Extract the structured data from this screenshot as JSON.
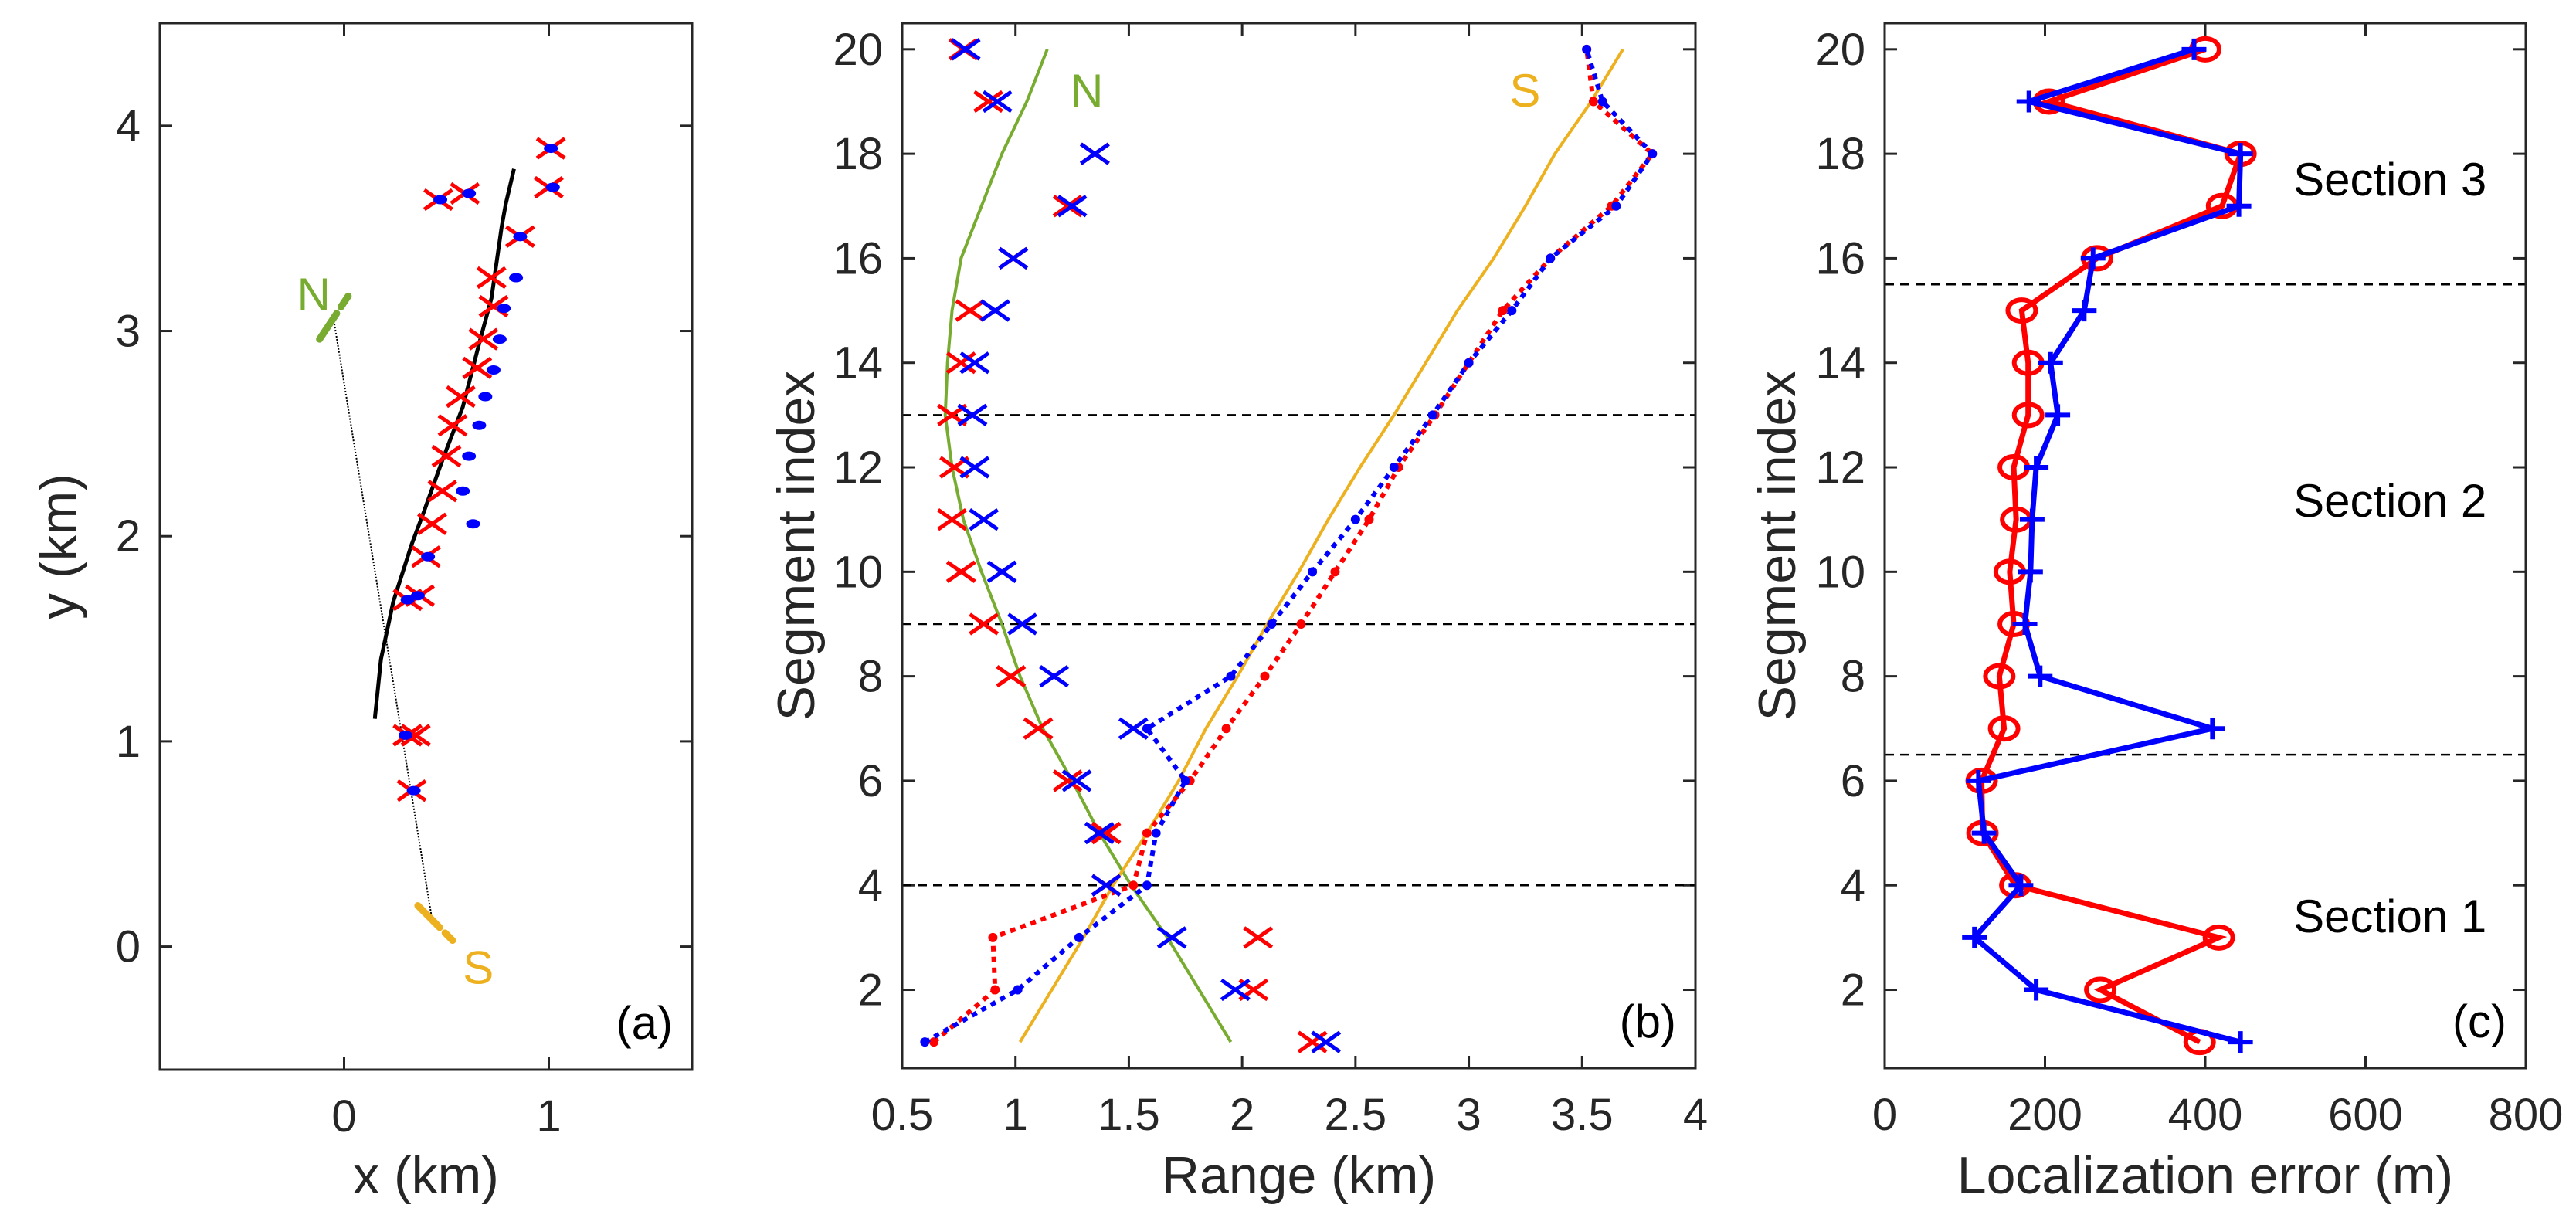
{
  "chart_data": [
    {
      "type": "scatter",
      "panel_label": "(a)",
      "xlabel": "x (km)",
      "ylabel": "y (km)",
      "xlim": [
        -0.9,
        1.7
      ],
      "ylim": [
        -0.6,
        4.5
      ],
      "xticks": [
        "0",
        "1"
      ],
      "xtick_values": [
        0,
        1
      ],
      "yticks": [
        "0",
        "1",
        "2",
        "3",
        "4"
      ],
      "ytick_values": [
        0,
        1,
        2,
        3,
        4
      ],
      "annotations": [
        {
          "text": "N",
          "x": -0.23,
          "y": 3.1,
          "color": "#77ac30"
        },
        {
          "text": "S",
          "x": 0.58,
          "y": -0.18,
          "color": "#edb120"
        }
      ],
      "track": {
        "color": "#000000",
        "x": [
          0.15,
          0.18,
          0.24,
          0.33,
          0.39,
          0.48,
          0.58,
          0.66,
          0.72,
          0.77,
          0.79,
          0.83
        ],
        "y": [
          1.11,
          1.4,
          1.68,
          1.96,
          2.12,
          2.37,
          2.63,
          2.94,
          3.16,
          3.51,
          3.62,
          3.79
        ]
      },
      "baseline": {
        "x": [
          -0.05,
          0.43
        ],
        "y": [
          3.05,
          0.13
        ]
      },
      "N_array": {
        "color": "#77ac30",
        "x": [
          -0.12,
          0.02
        ],
        "y": [
          2.96,
          3.17
        ]
      },
      "S_array": {
        "color": "#edb120",
        "x": [
          0.36,
          0.53
        ],
        "y": [
          0.2,
          0.03
        ]
      },
      "red_x": {
        "color": "#ff0000",
        "x": [
          1.01,
          1.0,
          0.46,
          0.59,
          0.86,
          0.72,
          0.73,
          0.68,
          0.65,
          0.57,
          0.53,
          0.5,
          0.48,
          0.43,
          0.4,
          0.37,
          0.31,
          0.31,
          0.35,
          0.33
        ],
        "y": [
          3.89,
          3.7,
          3.64,
          3.67,
          3.46,
          3.26,
          3.12,
          2.96,
          2.82,
          2.68,
          2.54,
          2.39,
          2.22,
          2.06,
          1.9,
          1.71,
          1.69,
          1.03,
          1.03,
          0.76
        ]
      },
      "blue_dots": {
        "color": "#0000ff",
        "x": [
          1.01,
          1.02,
          0.47,
          0.61,
          0.86,
          0.84,
          0.78,
          0.76,
          0.73,
          0.69,
          0.66,
          0.61,
          0.58,
          0.63,
          0.41,
          0.36,
          0.31,
          0.3,
          0.34
        ],
        "y": [
          3.89,
          3.7,
          3.64,
          3.67,
          3.46,
          3.26,
          3.11,
          2.96,
          2.81,
          2.68,
          2.54,
          2.39,
          2.22,
          2.06,
          1.9,
          1.71,
          1.69,
          1.03,
          0.76
        ]
      }
    },
    {
      "type": "line",
      "panel_label": "(b)",
      "xlabel": "Range (km)",
      "ylabel": "Segment index",
      "xlim": [
        0.5,
        4
      ],
      "ylim": [
        0.5,
        20.5
      ],
      "xticks": [
        "0.5",
        "1",
        "1.5",
        "2",
        "2.5",
        "3",
        "3.5",
        "4"
      ],
      "xtick_values": [
        0.5,
        1,
        1.5,
        2,
        2.5,
        3,
        3.5,
        4
      ],
      "yticks": [
        "2",
        "4",
        "6",
        "8",
        "10",
        "12",
        "14",
        "16",
        "18",
        "20"
      ],
      "ytick_values": [
        2,
        4,
        6,
        8,
        10,
        12,
        14,
        16,
        18,
        20
      ],
      "section_boundaries": [
        4,
        9,
        13
      ],
      "annotations": [
        {
          "text": "N",
          "x": 1.24,
          "y": 18.9,
          "color": "#77ac30"
        },
        {
          "text": "S",
          "x": 3.18,
          "y": 18.9,
          "color": "#edb120"
        }
      ],
      "segments": [
        1,
        2,
        3,
        4,
        5,
        6,
        7,
        8,
        9,
        10,
        11,
        12,
        13,
        14,
        15,
        16,
        17,
        18,
        19,
        20
      ],
      "series": [
        {
          "name": "N",
          "style": "solid",
          "color": "#77ac30",
          "values": [
            1.95,
            1.81,
            1.67,
            1.51,
            1.37,
            1.25,
            1.12,
            1.02,
            0.94,
            0.85,
            0.77,
            0.72,
            0.69,
            0.7,
            0.72,
            0.76,
            0.85,
            0.94,
            1.05,
            1.14
          ]
        },
        {
          "name": "S",
          "style": "solid",
          "color": "#edb120",
          "values": [
            1.02,
            1.16,
            1.3,
            1.43,
            1.58,
            1.72,
            1.84,
            1.98,
            2.11,
            2.25,
            2.38,
            2.52,
            2.67,
            2.81,
            2.95,
            3.11,
            3.25,
            3.38,
            3.54,
            3.68
          ]
        },
        {
          "name": "red-dotted",
          "style": "dotted",
          "color": "#ff0000",
          "values": [
            0.64,
            0.91,
            0.9,
            1.52,
            1.58,
            1.77,
            1.93,
            2.1,
            2.26,
            2.41,
            2.56,
            2.69,
            2.85,
            3.0,
            3.15,
            3.36,
            3.63,
            3.81,
            3.55,
            3.52
          ]
        },
        {
          "name": "blue-dotted",
          "style": "dotted",
          "color": "#0000ff",
          "values": [
            0.6,
            1.01,
            1.28,
            1.58,
            1.62,
            1.75,
            1.58,
            1.95,
            2.13,
            2.31,
            2.5,
            2.67,
            2.84,
            3.0,
            3.19,
            3.36,
            3.65,
            3.81,
            3.59,
            3.52
          ]
        },
        {
          "name": "red-x",
          "style": "marker-x",
          "color": "#ff0000",
          "values": [
            2.31,
            2.05,
            2.07,
            1.4,
            1.4,
            1.23,
            1.1,
            0.98,
            0.86,
            0.76,
            0.72,
            0.73,
            0.72,
            0.76,
            0.8,
            0.99,
            1.23,
            1.35,
            0.88,
            0.77
          ]
        },
        {
          "name": "blue-x",
          "style": "marker-x",
          "color": "#0000ff",
          "values": [
            2.37,
            1.97,
            1.69,
            1.4,
            1.37,
            1.27,
            1.52,
            1.17,
            1.03,
            0.94,
            0.86,
            0.82,
            0.81,
            0.82,
            0.91,
            0.99,
            1.25,
            1.35,
            0.92,
            0.78
          ]
        }
      ]
    },
    {
      "type": "line",
      "panel_label": "(c)",
      "xlabel": "Localization error (m)",
      "ylabel": "Segment index",
      "xlim": [
        0,
        800
      ],
      "ylim": [
        0.5,
        20.5
      ],
      "xticks": [
        "0",
        "200",
        "400",
        "600",
        "800"
      ],
      "xtick_values": [
        0,
        200,
        400,
        600,
        800
      ],
      "yticks": [
        "2",
        "4",
        "6",
        "8",
        "10",
        "12",
        "14",
        "16",
        "18",
        "20"
      ],
      "ytick_values": [
        2,
        4,
        6,
        8,
        10,
        12,
        14,
        16,
        18,
        20
      ],
      "section_boundaries": [
        6.5,
        15.5
      ],
      "section_labels": [
        {
          "text": "Section 3",
          "x": 510,
          "y": 17.5
        },
        {
          "text": "Section 2",
          "x": 510,
          "y": 11.35
        },
        {
          "text": "Section 1",
          "x": 510,
          "y": 3.4
        }
      ],
      "segments": [
        1,
        2,
        3,
        4,
        5,
        6,
        7,
        8,
        9,
        10,
        11,
        12,
        13,
        14,
        15,
        16,
        17,
        18,
        19,
        20
      ],
      "series": [
        {
          "name": "red-circle",
          "marker": "o",
          "color": "#ff0000",
          "values": [
            393,
            269,
            417,
            163,
            122,
            121,
            149,
            143,
            161,
            156,
            164,
            161,
            179,
            179,
            171,
            265,
            421,
            444,
            205,
            400
          ]
        },
        {
          "name": "blue-plus",
          "marker": "+",
          "color": "#0000ff",
          "values": [
            444,
            189,
            112,
            170,
            124,
            117,
            409,
            194,
            175,
            182,
            184,
            189,
            216,
            207,
            249,
            260,
            442,
            444,
            180,
            386
          ]
        }
      ]
    }
  ]
}
